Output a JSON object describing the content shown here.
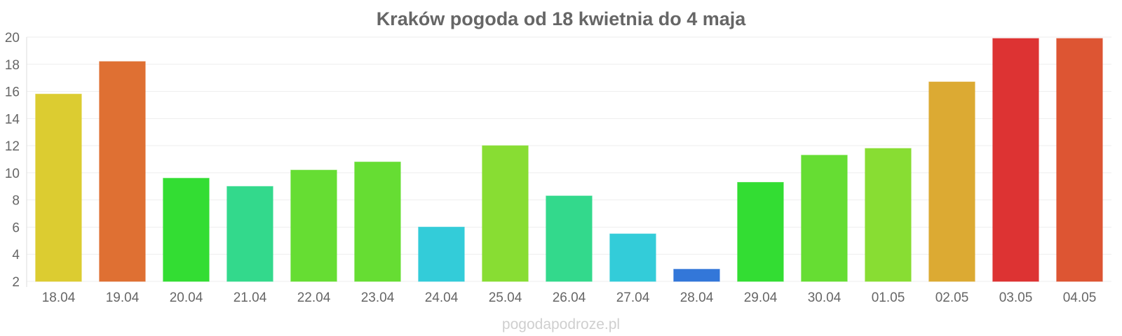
{
  "chart_data": {
    "type": "bar",
    "title": "Kraków pogoda od 18 kwietnia do 4 maja",
    "xlabel": "",
    "ylabel": "",
    "ylim": [
      2,
      20
    ],
    "yticks": [
      "2",
      "4",
      "6",
      "8",
      "10",
      "12",
      "14",
      "16",
      "18",
      "20"
    ],
    "grid": true,
    "categories": [
      "18.04",
      "19.04",
      "20.04",
      "21.04",
      "22.04",
      "23.04",
      "24.04",
      "25.04",
      "26.04",
      "27.04",
      "28.04",
      "29.04",
      "30.04",
      "01.05",
      "02.05",
      "03.05",
      "04.05"
    ],
    "values": [
      15.8,
      18.2,
      9.6,
      9.0,
      10.2,
      10.8,
      6.0,
      12.0,
      8.3,
      5.5,
      2.9,
      9.3,
      11.3,
      11.8,
      16.7,
      19.9,
      19.9
    ],
    "colors": [
      "#dccc31",
      "#df7033",
      "#33dd33",
      "#33d98c",
      "#66dd33",
      "#66dd33",
      "#33ccd9",
      "#88dd33",
      "#33d98c",
      "#33ccd9",
      "#3377d9",
      "#33dd33",
      "#66dd33",
      "#88dd33",
      "#dcaa33",
      "#dd3333",
      "#dd5533"
    ]
  },
  "watermark": "pogodapodroze.pl"
}
